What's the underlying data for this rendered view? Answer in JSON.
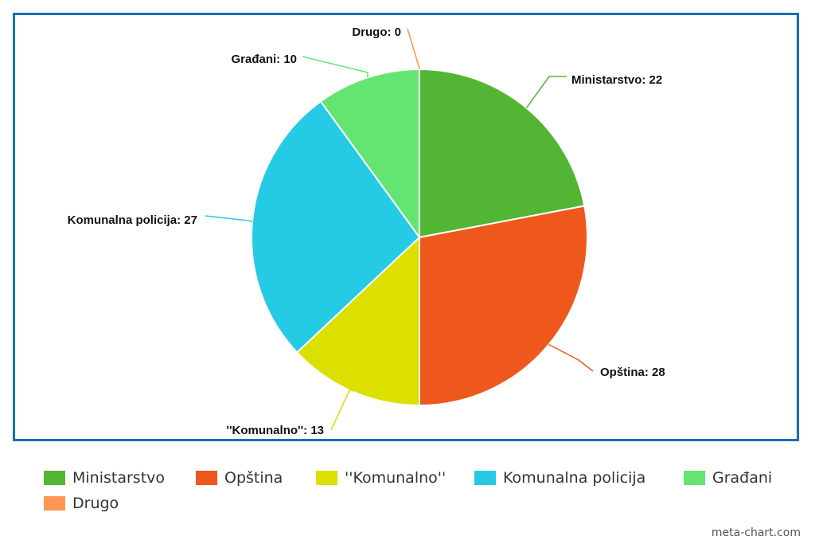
{
  "chart_data": {
    "type": "pie",
    "categories": [
      "Ministarstvo",
      "Opština",
      "\"Komunalno\"",
      "Komunalna policija",
      "Građani",
      "Drugo"
    ],
    "values": [
      22,
      28,
      13,
      27,
      10,
      0
    ],
    "slice_labels": [
      "Ministarstvo: 22",
      "Opština: 28",
      "''Komunalno'': 13",
      "Komunalna policija: 27",
      "Građani: 10",
      "Drugo: 0"
    ],
    "colors": [
      "#52b634",
      "#ee581c",
      "#dbe000",
      "#25cbe5",
      "#64e572",
      "#ff9655"
    ],
    "legend": {
      "position": "bottom",
      "labels": [
        "Ministarstvo",
        "Opština",
        "''Komunalno''",
        "Komunalna policija",
        "Građani",
        "Drugo"
      ]
    },
    "title": "",
    "frame_color": "#1670b5"
  },
  "footer": {
    "credit": "meta-chart.com"
  }
}
